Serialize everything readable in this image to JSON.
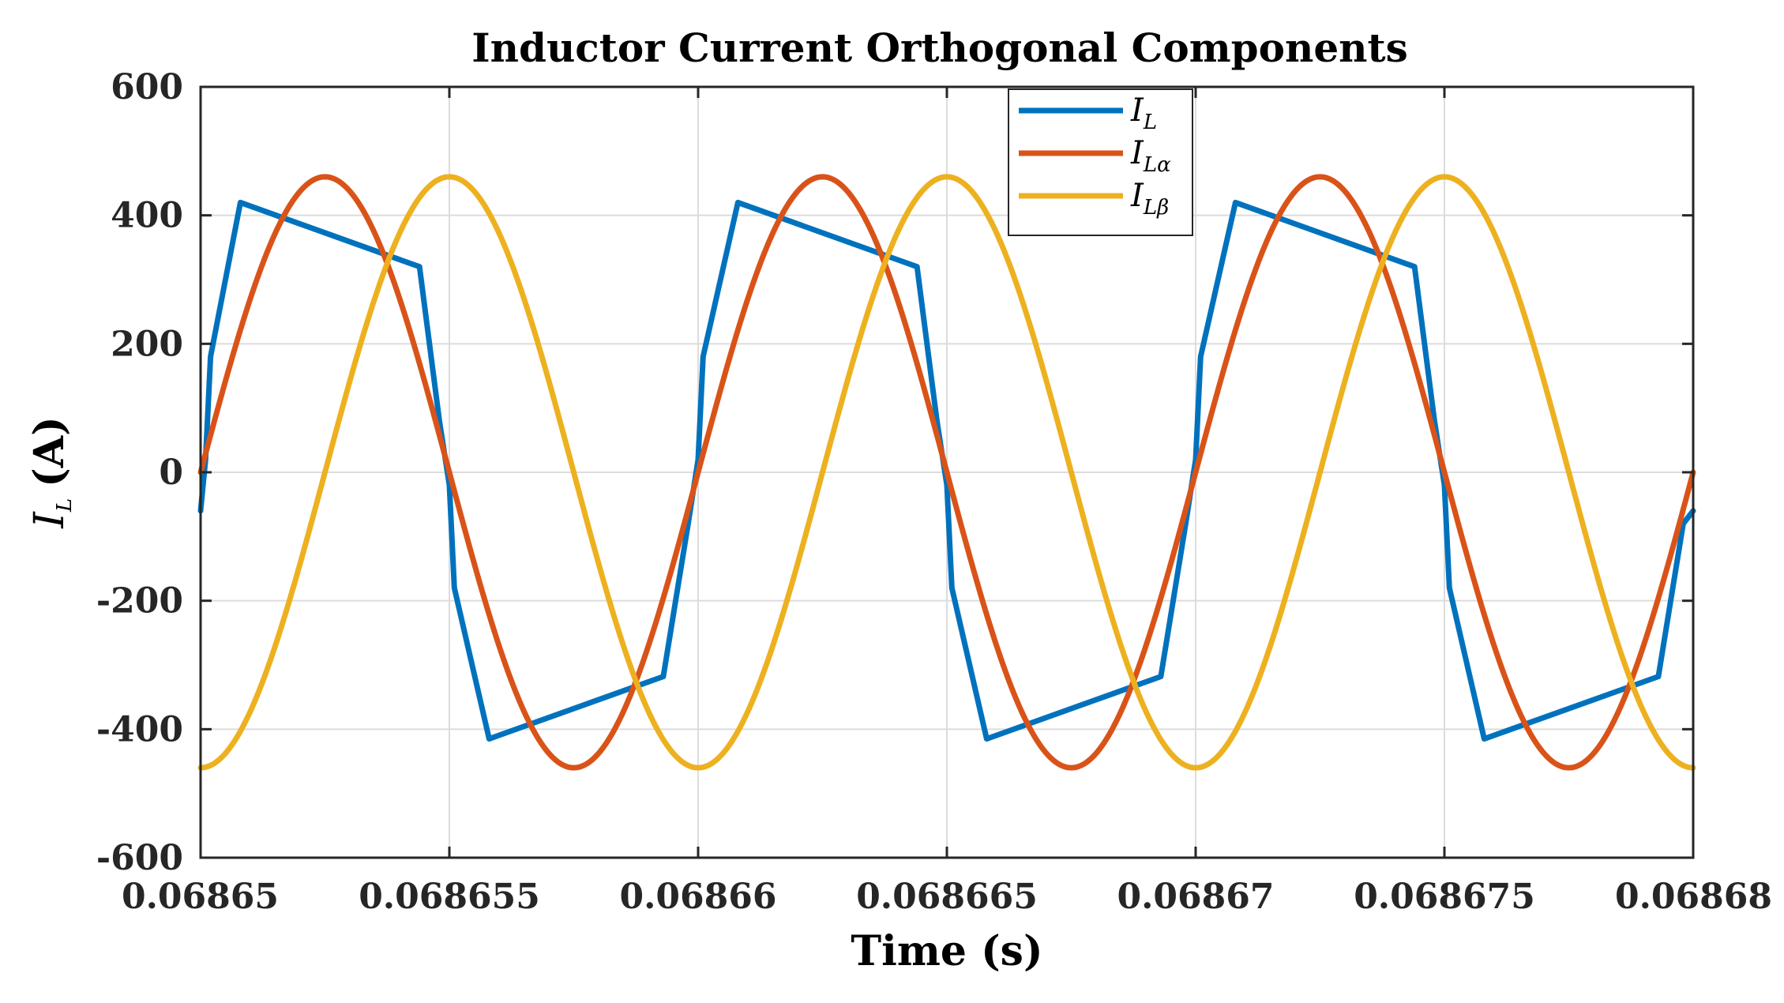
{
  "chart_data": {
    "type": "line",
    "title": "Inductor Current Orthogonal Components",
    "xlabel": "Time (s)",
    "ylabel": {
      "symbol": "I",
      "subscript": "L",
      "unit": "(A)"
    },
    "xlim": [
      0.06865,
      0.06868
    ],
    "ylim": [
      -600,
      600
    ],
    "xticks": [
      0.06865,
      0.068655,
      0.06866,
      0.068665,
      0.06867,
      0.068675,
      0.06868
    ],
    "xtick_labels": [
      "0.06865",
      "0.068655",
      "0.06866",
      "0.068665",
      "0.06867",
      "0.068675",
      "0.06868"
    ],
    "yticks": [
      600,
      400,
      200,
      0,
      -200,
      -400,
      -600
    ],
    "ytick_labels": [
      "600",
      "400",
      "200",
      "0",
      "-200",
      "-400",
      "-600"
    ],
    "grid": true,
    "legend_position": "top-center",
    "series": [
      {
        "name": "I_L",
        "label_main": "I",
        "label_sub": "L",
        "color": "#0072BD",
        "x": [
          0.06865,
          0.0686501,
          0.0686502,
          0.0686508,
          0.0686544,
          0.0686548,
          0.068655,
          0.0686551,
          0.0686558,
          0.0686593,
          0.0686598,
          0.06866,
          0.0686601,
          0.0686608,
          0.0686644,
          0.0686648,
          0.068665,
          0.0686651,
          0.0686658,
          0.0686693,
          0.0686698,
          0.06867,
          0.0686701,
          0.0686708,
          0.0686744,
          0.0686748,
          0.068675,
          0.0686751,
          0.0686758,
          0.0686793,
          0.0686798,
          0.06868
        ],
        "y": [
          -60,
          20,
          180,
          420,
          320,
          80,
          -20,
          -180,
          -415,
          -318,
          -80,
          20,
          180,
          420,
          320,
          80,
          -20,
          -180,
          -415,
          -318,
          -80,
          20,
          180,
          420,
          320,
          80,
          -20,
          -180,
          -415,
          -318,
          -80,
          -60
        ]
      },
      {
        "name": "I_Lalpha",
        "label_main": "I",
        "label_sub": "Lα",
        "color": "#D95319",
        "amplitude": 460,
        "period": 1e-05,
        "phase_deg": 0,
        "waveform": "sine"
      },
      {
        "name": "I_Lbeta",
        "label_main": "I",
        "label_sub": "Lβ",
        "color": "#EDB120",
        "amplitude": 460,
        "period": 1e-05,
        "phase_deg": -90,
        "waveform": "sine"
      }
    ]
  }
}
